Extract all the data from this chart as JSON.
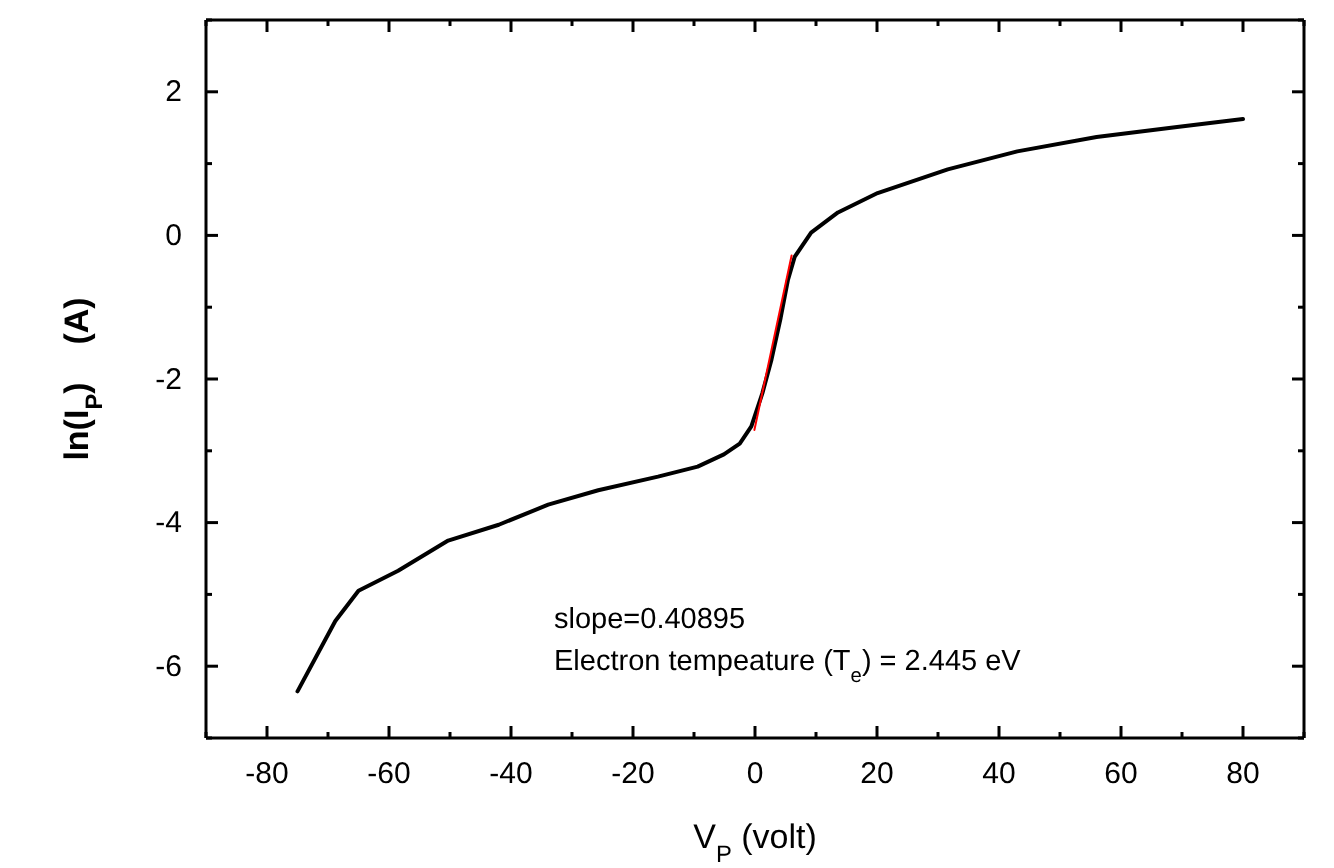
{
  "chart_data": {
    "type": "line",
    "xlabel": "V$_{P}$ (volt)",
    "ylabel": "ln(I$_{P}$)    (A)",
    "xlim": [
      -90,
      90
    ],
    "xticks": [
      {
        "value": -90,
        "label": null
      },
      -80,
      {
        "value": -70,
        "label": null
      },
      -60,
      {
        "value": -50,
        "label": null
      },
      -40,
      {
        "value": -30,
        "label": null
      },
      -20,
      {
        "value": -10,
        "label": null
      },
      0,
      {
        "value": 10,
        "label": null
      },
      20,
      {
        "value": 30,
        "label": null
      },
      40,
      {
        "value": 50,
        "label": null
      },
      60,
      {
        "value": 70,
        "label": null
      },
      80,
      {
        "value": 90,
        "label": null
      }
    ],
    "ylim": [
      -7,
      3
    ],
    "yticks": [
      {
        "value": -7,
        "label": null
      },
      -6,
      {
        "value": -5,
        "label": null
      },
      -4,
      {
        "value": -3,
        "label": null
      },
      -2,
      {
        "value": -1,
        "label": null
      },
      0,
      {
        "value": 1,
        "label": null
      },
      2,
      {
        "value": 3,
        "label": null
      }
    ],
    "series": [
      {
        "color": "#000000",
        "x": [
          -75,
          -68.8,
          -65,
          -58.5,
          -50.3,
          -42,
          -33.9,
          -25.7,
          -15.9,
          -9.4,
          -5.1,
          -2.5,
          -0.6,
          1.2,
          2.7,
          4.2,
          5.4,
          6.5,
          9.2,
          13.6,
          20.1,
          31.6,
          43,
          56,
          69.2,
          80
        ],
        "values": [
          -6.35,
          -5.37,
          -4.95,
          -4.67,
          -4.25,
          -4.03,
          -3.75,
          -3.55,
          -3.36,
          -3.22,
          -3.05,
          -2.9,
          -2.66,
          -2.2,
          -1.73,
          -1.15,
          -0.62,
          -0.3,
          0.04,
          0.32,
          0.59,
          0.92,
          1.17,
          1.37,
          1.51,
          1.62
        ]
      },
      {
        "color": "#ff0000",
        "x": [
          -0.1,
          6.0
        ],
        "values": [
          -2.71,
          -0.28
        ]
      }
    ],
    "annotations": [
      "slope=0.40895",
      "Electron tempeature (T$_{e}$) = 2.445 eV"
    ],
    "grid": false,
    "marker": "none",
    "line_style": "solid"
  }
}
